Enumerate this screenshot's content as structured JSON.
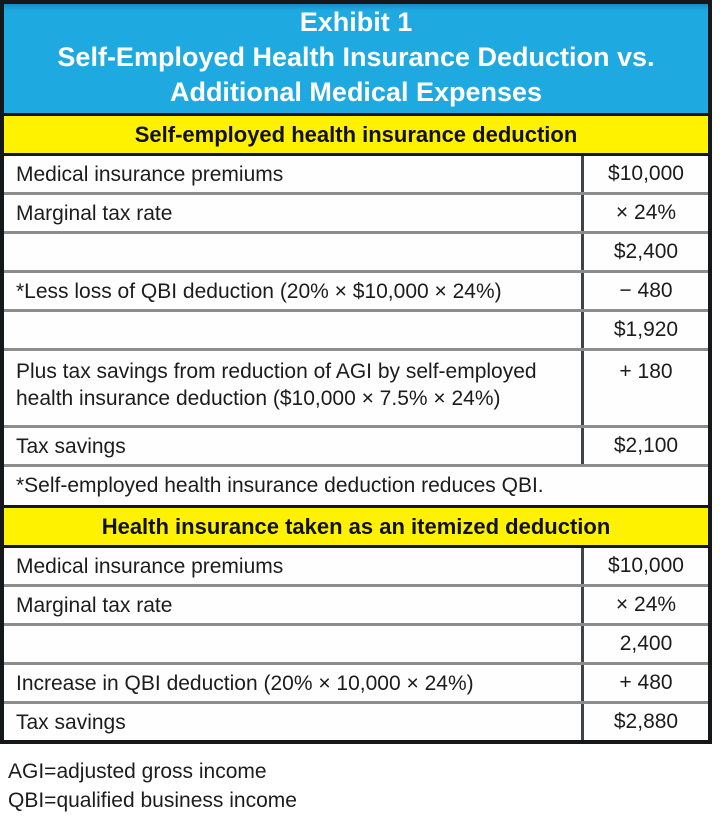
{
  "header": {
    "line1": "Exhibit 1",
    "line2": "Self-Employed Health Insurance Deduction vs.",
    "line3": "Additional Medical Expenses"
  },
  "colors": {
    "title_bg": "#1FA9E1",
    "title_text": "#FFFFFF",
    "band_bg": "#FFF200",
    "band_text": "#111111",
    "row_separator": "#8D8D8D",
    "outer_border": "#14181A"
  },
  "sections": [
    {
      "title": "Self-employed health insurance deduction",
      "rows": [
        {
          "label": "Medical insurance premiums",
          "value": "$10,000"
        },
        {
          "label": "Marginal tax rate",
          "value": "× 24%"
        },
        {
          "label": "",
          "value": "$2,400"
        },
        {
          "label": "*Less loss of QBI deduction (20% × $10,000 × 24%)",
          "value": "− 480"
        },
        {
          "label": "",
          "value": "$1,920"
        },
        {
          "label": "Plus tax savings from reduction of AGI by self-employed health insurance deduction ($10,000 × 7.5% × 24%)",
          "value": "+ 180"
        },
        {
          "label": "Tax savings",
          "value": "$2,100"
        }
      ],
      "footnote": "*Self-employed health insurance deduction reduces QBI."
    },
    {
      "title": "Health insurance taken as an itemized deduction",
      "rows": [
        {
          "label": "Medical insurance premiums",
          "value": "$10,000"
        },
        {
          "label": "Marginal tax rate",
          "value": "× 24%"
        },
        {
          "label": "",
          "value": "2,400"
        },
        {
          "label": "Increase in QBI deduction (20% × 10,000 × 24%)",
          "value": "+ 480"
        },
        {
          "label": "Tax savings",
          "value": "$2,880"
        }
      ]
    }
  ],
  "legend": [
    "AGI=adjusted gross income",
    "QBI=qualified business income"
  ]
}
